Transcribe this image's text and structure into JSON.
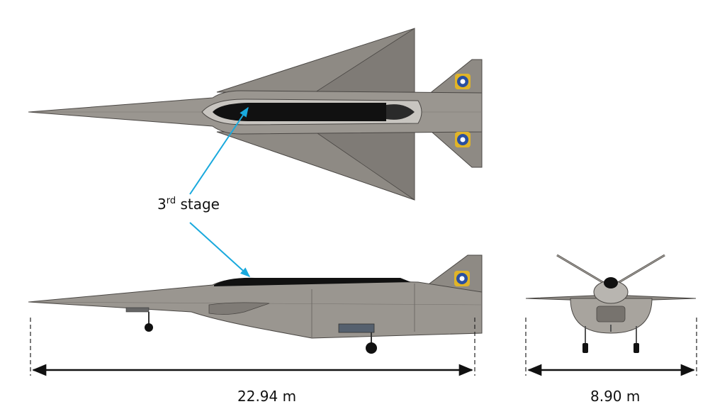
{
  "annotation": {
    "stage_number": "3",
    "stage_suffix": "rd",
    "stage_word": "stage"
  },
  "dimensions": {
    "length": "22.94 m",
    "span": "8.90 m"
  },
  "colors": {
    "body": "#8e8a84",
    "body_dark": "#6f6b66",
    "stage_black": "#111111",
    "arrow_callout": "#19a9dd",
    "insignia": "#e0b428",
    "insignia_blue": "#2a4fa0"
  }
}
